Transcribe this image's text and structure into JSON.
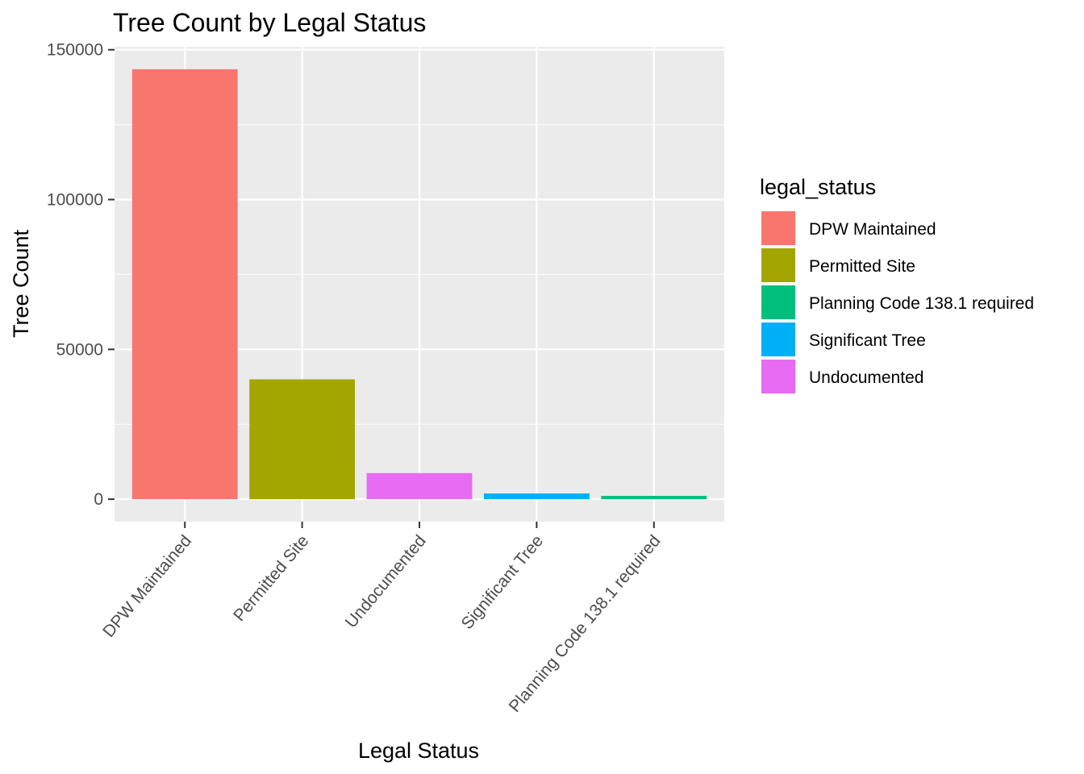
{
  "chart_data": {
    "type": "bar",
    "title": "Tree Count by Legal Status",
    "xlabel": "Legal Status",
    "ylabel": "Tree Count",
    "categories": [
      "DPW Maintained",
      "Permitted Site",
      "Undocumented",
      "Significant Tree",
      "Planning Code 138.1 required"
    ],
    "values": [
      143500,
      40000,
      8700,
      1900,
      1100
    ],
    "colors": [
      "#F8766D",
      "#A3A500",
      "#E76BF3",
      "#00B0F6",
      "#00BF7D"
    ],
    "ylim": [
      -7500,
      151000
    ],
    "yticks": [
      0,
      50000,
      100000,
      150000
    ],
    "ytick_labels": [
      "0",
      "50000",
      "100000",
      "150000"
    ],
    "grid": true,
    "legend": {
      "title": "legal_status",
      "placement": "right",
      "entries": [
        {
          "label": "DPW Maintained",
          "color": "#F8766D"
        },
        {
          "label": "Permitted Site",
          "color": "#A3A500"
        },
        {
          "label": "Planning Code 138.1 required",
          "color": "#00BF7D"
        },
        {
          "label": "Significant Tree",
          "color": "#00B0F6"
        },
        {
          "label": "Undocumented",
          "color": "#E76BF3"
        }
      ]
    },
    "panel_background": "#EBEBEB",
    "grid_color": "#FFFFFF"
  }
}
